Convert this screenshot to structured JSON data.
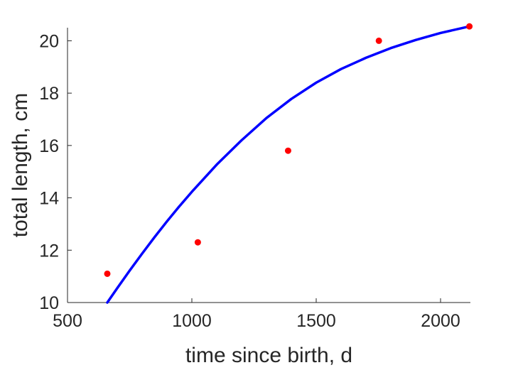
{
  "chart_data": {
    "type": "scatter",
    "title": "",
    "xlabel": "time since birth, d",
    "ylabel": "total length, cm",
    "xlim": [
      500,
      2120
    ],
    "ylim": [
      10,
      20.5
    ],
    "xticks": [
      500,
      1000,
      1500,
      2000
    ],
    "yticks": [
      10,
      12,
      14,
      16,
      18,
      20
    ],
    "grid": false,
    "legend": "none",
    "series": [
      {
        "kind": "points",
        "color": "#ff0000",
        "x": [
          660,
          1024,
          1387,
          1752,
          2116
        ],
        "y": [
          11.1,
          12.3,
          15.8,
          20.0,
          20.55
        ]
      },
      {
        "kind": "curve",
        "color": "#0000ff",
        "x": [
          660,
          700,
          750,
          800,
          850,
          900,
          950,
          1000,
          1100,
          1200,
          1300,
          1400,
          1500,
          1600,
          1700,
          1800,
          1900,
          2000,
          2116
        ],
        "y": [
          10.0,
          10.55,
          11.22,
          11.87,
          12.5,
          13.1,
          13.68,
          14.23,
          15.27,
          16.2,
          17.05,
          17.78,
          18.4,
          18.92,
          19.35,
          19.72,
          20.03,
          20.3,
          20.55
        ]
      }
    ]
  }
}
